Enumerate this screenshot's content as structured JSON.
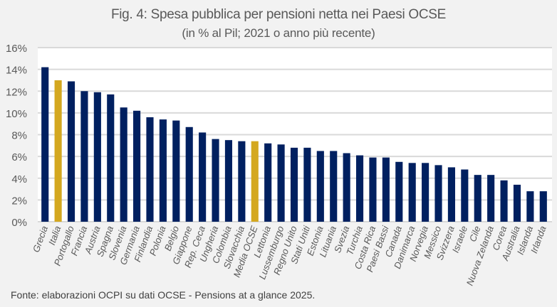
{
  "chart_data": {
    "type": "bar",
    "title": "Fig. 4: Spesa pubblica per pensioni netta nei Paesi OCSE",
    "subtitle": "(in % al Pil; 2021 o anno più recente)",
    "xlabel": "",
    "ylabel": "",
    "ylim": [
      0,
      16
    ],
    "yticks": [
      0,
      2,
      4,
      6,
      8,
      10,
      12,
      14,
      16
    ],
    "ytick_labels": [
      "0%",
      "2%",
      "4%",
      "6%",
      "8%",
      "10%",
      "12%",
      "14%",
      "16%"
    ],
    "grid": true,
    "legend": "none",
    "categories": [
      "Grecia",
      "Italia",
      "Portogallo",
      "Francia",
      "Austria",
      "Spagna",
      "Slovenia",
      "Germania",
      "Finlandia",
      "Polonia",
      "Belgio",
      "Giappone",
      "Rep. Ceca",
      "Ungheria",
      "Colombia",
      "Slovacchia",
      "Media OCSE",
      "Lettonia",
      "Lussemburgo",
      "Regno Unito",
      "Stati Uniti",
      "Estonia",
      "Lituania",
      "Svezia",
      "Turchia",
      "Costa Rica",
      "Paesi Bassi",
      "Canada",
      "Danimarca",
      "Norvegia",
      "Messico",
      "Svizzera",
      "Israele",
      "Cile",
      "Nuova Zelanda",
      "Corea",
      "Australia",
      "Islanda",
      "Irlanda"
    ],
    "values": [
      14.2,
      13.0,
      12.9,
      12.0,
      11.9,
      11.7,
      10.5,
      10.2,
      9.6,
      9.4,
      9.3,
      8.7,
      8.2,
      7.6,
      7.5,
      7.4,
      7.4,
      7.2,
      7.1,
      6.8,
      6.8,
      6.5,
      6.5,
      6.3,
      6.1,
      5.9,
      5.9,
      5.5,
      5.4,
      5.4,
      5.2,
      5.0,
      4.8,
      4.3,
      4.3,
      3.8,
      3.4,
      2.8,
      2.8
    ],
    "highlighted": [
      "Italia",
      "Media OCSE"
    ],
    "colors": {
      "default": "#002060",
      "highlight": "#d4a820",
      "grid": "#d9d9d9",
      "plot_bg": "#ffffff",
      "page_bg": "#f2f2f2"
    }
  },
  "source_note": "Fonte: elaborazioni OCPI su dati OCSE - Pensions at a glance 2025."
}
